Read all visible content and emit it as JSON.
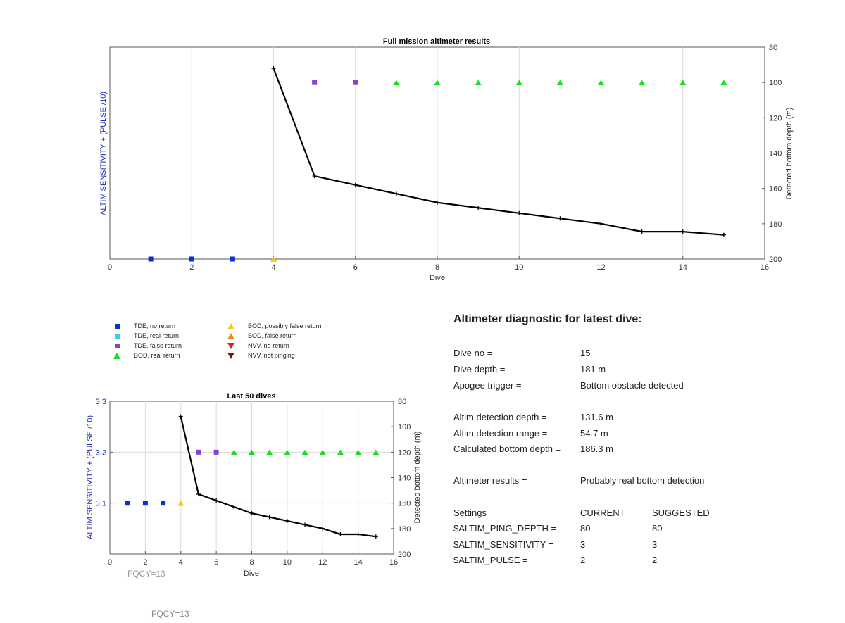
{
  "chart_data": [
    {
      "type": "scatter",
      "title": "Full mission altimeter results",
      "xlabel": "Dive",
      "ylabel_left": "ALTIM SENSITIVITY + (PULSE /10)",
      "ylabel_right": "Detected bottom depth (m)",
      "xlim": [
        0,
        16
      ],
      "ylim_right": [
        80,
        200
      ],
      "x_ticks": [
        0,
        2,
        4,
        6,
        8,
        10,
        12,
        14,
        16
      ],
      "y_ticks_right": [
        80,
        100,
        120,
        140,
        160,
        180,
        200
      ],
      "grid": "x",
      "markers": [
        {
          "dive": 1,
          "category": "TDE, no return",
          "depth": 200
        },
        {
          "dive": 2,
          "category": "TDE, no return",
          "depth": 200
        },
        {
          "dive": 3,
          "category": "TDE, no return",
          "depth": 200
        },
        {
          "dive": 4,
          "category": "BOD, possibly false return",
          "depth": 200
        },
        {
          "dive": 5,
          "category": "TDE, false return",
          "depth": 100
        },
        {
          "dive": 6,
          "category": "TDE, false return",
          "depth": 100
        },
        {
          "dive": 7,
          "category": "BOD, real return",
          "depth": 100
        },
        {
          "dive": 8,
          "category": "BOD, real return",
          "depth": 100
        },
        {
          "dive": 9,
          "category": "BOD, real return",
          "depth": 100
        },
        {
          "dive": 10,
          "category": "BOD, real return",
          "depth": 100
        },
        {
          "dive": 11,
          "category": "BOD, real return",
          "depth": 100
        },
        {
          "dive": 12,
          "category": "BOD, real return",
          "depth": 100
        },
        {
          "dive": 13,
          "category": "BOD, real return",
          "depth": 100
        },
        {
          "dive": 14,
          "category": "BOD, real return",
          "depth": 100
        },
        {
          "dive": 15,
          "category": "BOD, real return",
          "depth": 100
        }
      ],
      "bottom_depth_line": {
        "x": [
          4,
          5,
          6,
          7,
          8,
          9,
          10,
          11,
          12,
          13,
          14,
          15
        ],
        "y": [
          92,
          153,
          158,
          163,
          168,
          171,
          174,
          177,
          180,
          184.5,
          184.5,
          186.3
        ]
      }
    },
    {
      "type": "scatter",
      "title": "Last 50 dives",
      "xlabel": "Dive",
      "ylabel_left": "ALTIM SENSITIVITY + (PULSE /10)",
      "ylabel_right": "Detected bottom depth (m)",
      "xlim": [
        0,
        16
      ],
      "ylim_left": [
        3.0,
        3.3
      ],
      "ylim_right": [
        80,
        200
      ],
      "x_ticks": [
        0,
        2,
        4,
        6,
        8,
        10,
        12,
        14,
        16
      ],
      "y_ticks_left": [
        3.1,
        3.2,
        3.3
      ],
      "y_ticks_right": [
        80,
        100,
        120,
        140,
        160,
        180,
        200
      ],
      "grid": "both",
      "markers": [
        {
          "dive": 1,
          "category": "TDE, no return",
          "value": 3.1
        },
        {
          "dive": 2,
          "category": "TDE, no return",
          "value": 3.1
        },
        {
          "dive": 3,
          "category": "TDE, no return",
          "value": 3.1
        },
        {
          "dive": 4,
          "category": "BOD, possibly false return",
          "value": 3.1
        },
        {
          "dive": 5,
          "category": "TDE, false return",
          "value": 3.2
        },
        {
          "dive": 6,
          "category": "TDE, false return",
          "value": 3.2
        },
        {
          "dive": 7,
          "category": "BOD, real return",
          "value": 3.2
        },
        {
          "dive": 8,
          "category": "BOD, real return",
          "value": 3.2
        },
        {
          "dive": 9,
          "category": "BOD, real return",
          "value": 3.2
        },
        {
          "dive": 10,
          "category": "BOD, real return",
          "value": 3.2
        },
        {
          "dive": 11,
          "category": "BOD, real return",
          "value": 3.2
        },
        {
          "dive": 12,
          "category": "BOD, real return",
          "value": 3.2
        },
        {
          "dive": 13,
          "category": "BOD, real return",
          "value": 3.2
        },
        {
          "dive": 14,
          "category": "BOD, real return",
          "value": 3.2
        },
        {
          "dive": 15,
          "category": "BOD, real return",
          "value": 3.2
        }
      ],
      "bottom_depth_line": {
        "x": [
          4,
          5,
          6,
          7,
          8,
          9,
          10,
          11,
          12,
          13,
          14,
          15
        ],
        "y": [
          92,
          153,
          158,
          163,
          168,
          171,
          174,
          177,
          180,
          184.5,
          184.5,
          186.3
        ]
      },
      "note": "FQCY=13"
    }
  ],
  "legend": [
    {
      "label": "TDE, no return",
      "shape": "square",
      "color": "#0b2ed6"
    },
    {
      "label": "TDE, real return",
      "shape": "square",
      "color": "#2ad4ee"
    },
    {
      "label": "TDE, false return",
      "shape": "square",
      "color": "#8a3fd0"
    },
    {
      "label": "BOD, real return",
      "shape": "triangle-up",
      "color": "#19e01f"
    },
    {
      "label": "BOD, possibly false return",
      "shape": "triangle-up",
      "color": "#f5c816"
    },
    {
      "label": "BOD, false return",
      "shape": "triangle-up",
      "color": "#f28c10"
    },
    {
      "label": "NVV, no return",
      "shape": "triangle-down",
      "color": "#e0231a"
    },
    {
      "label": "NVV, not pinging",
      "shape": "triangle-down",
      "color": "#7a1010"
    }
  ],
  "footer_note": "FQCY=13",
  "diagnostic": {
    "title": "Altimeter diagnostic for latest dive:",
    "dive_no_label": "Dive no =",
    "dive_no": "15",
    "dive_depth_label": "Dive depth =",
    "dive_depth": "181 m",
    "apogee_label": "Apogee trigger =",
    "apogee": "Bottom obstacle detected",
    "det_depth_label": "Altim detection depth =",
    "det_depth": "131.6 m",
    "det_range_label": "Altim detection range =",
    "det_range": "54.7 m",
    "calc_depth_label": "Calculated bottom depth =",
    "calc_depth": "186.3 m",
    "results_label": "Altimeter results =",
    "results": "Probably real bottom detection",
    "settings_label": "Settings",
    "current_label": "CURRENT",
    "suggested_label": "SUGGESTED",
    "ping_depth_label": "$ALTIM_PING_DEPTH =",
    "ping_depth_current": "80",
    "ping_depth_suggested": "80",
    "sensitivity_label": "$ALTIM_SENSITIVITY =",
    "sensitivity_current": "3",
    "sensitivity_suggested": "3",
    "pulse_label": "$ALTIM_PULSE =",
    "pulse_current": "2",
    "pulse_suggested": "2"
  }
}
